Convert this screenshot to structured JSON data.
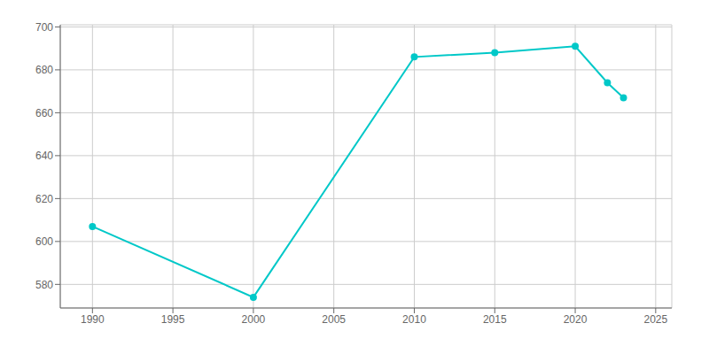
{
  "chart_data": {
    "type": "line",
    "x": [
      1990,
      2000,
      2010,
      2015,
      2020,
      2022,
      2023
    ],
    "values": [
      607,
      574,
      686,
      688,
      691,
      674,
      667
    ],
    "color": "#00C8C8",
    "marker": "circle",
    "xlim": [
      1988,
      2026
    ],
    "ylim": [
      569,
      701
    ],
    "xticks": [
      1990,
      1995,
      2000,
      2005,
      2010,
      2015,
      2020,
      2025
    ],
    "yticks": [
      580,
      600,
      620,
      640,
      660,
      680,
      700
    ],
    "grid": true
  }
}
